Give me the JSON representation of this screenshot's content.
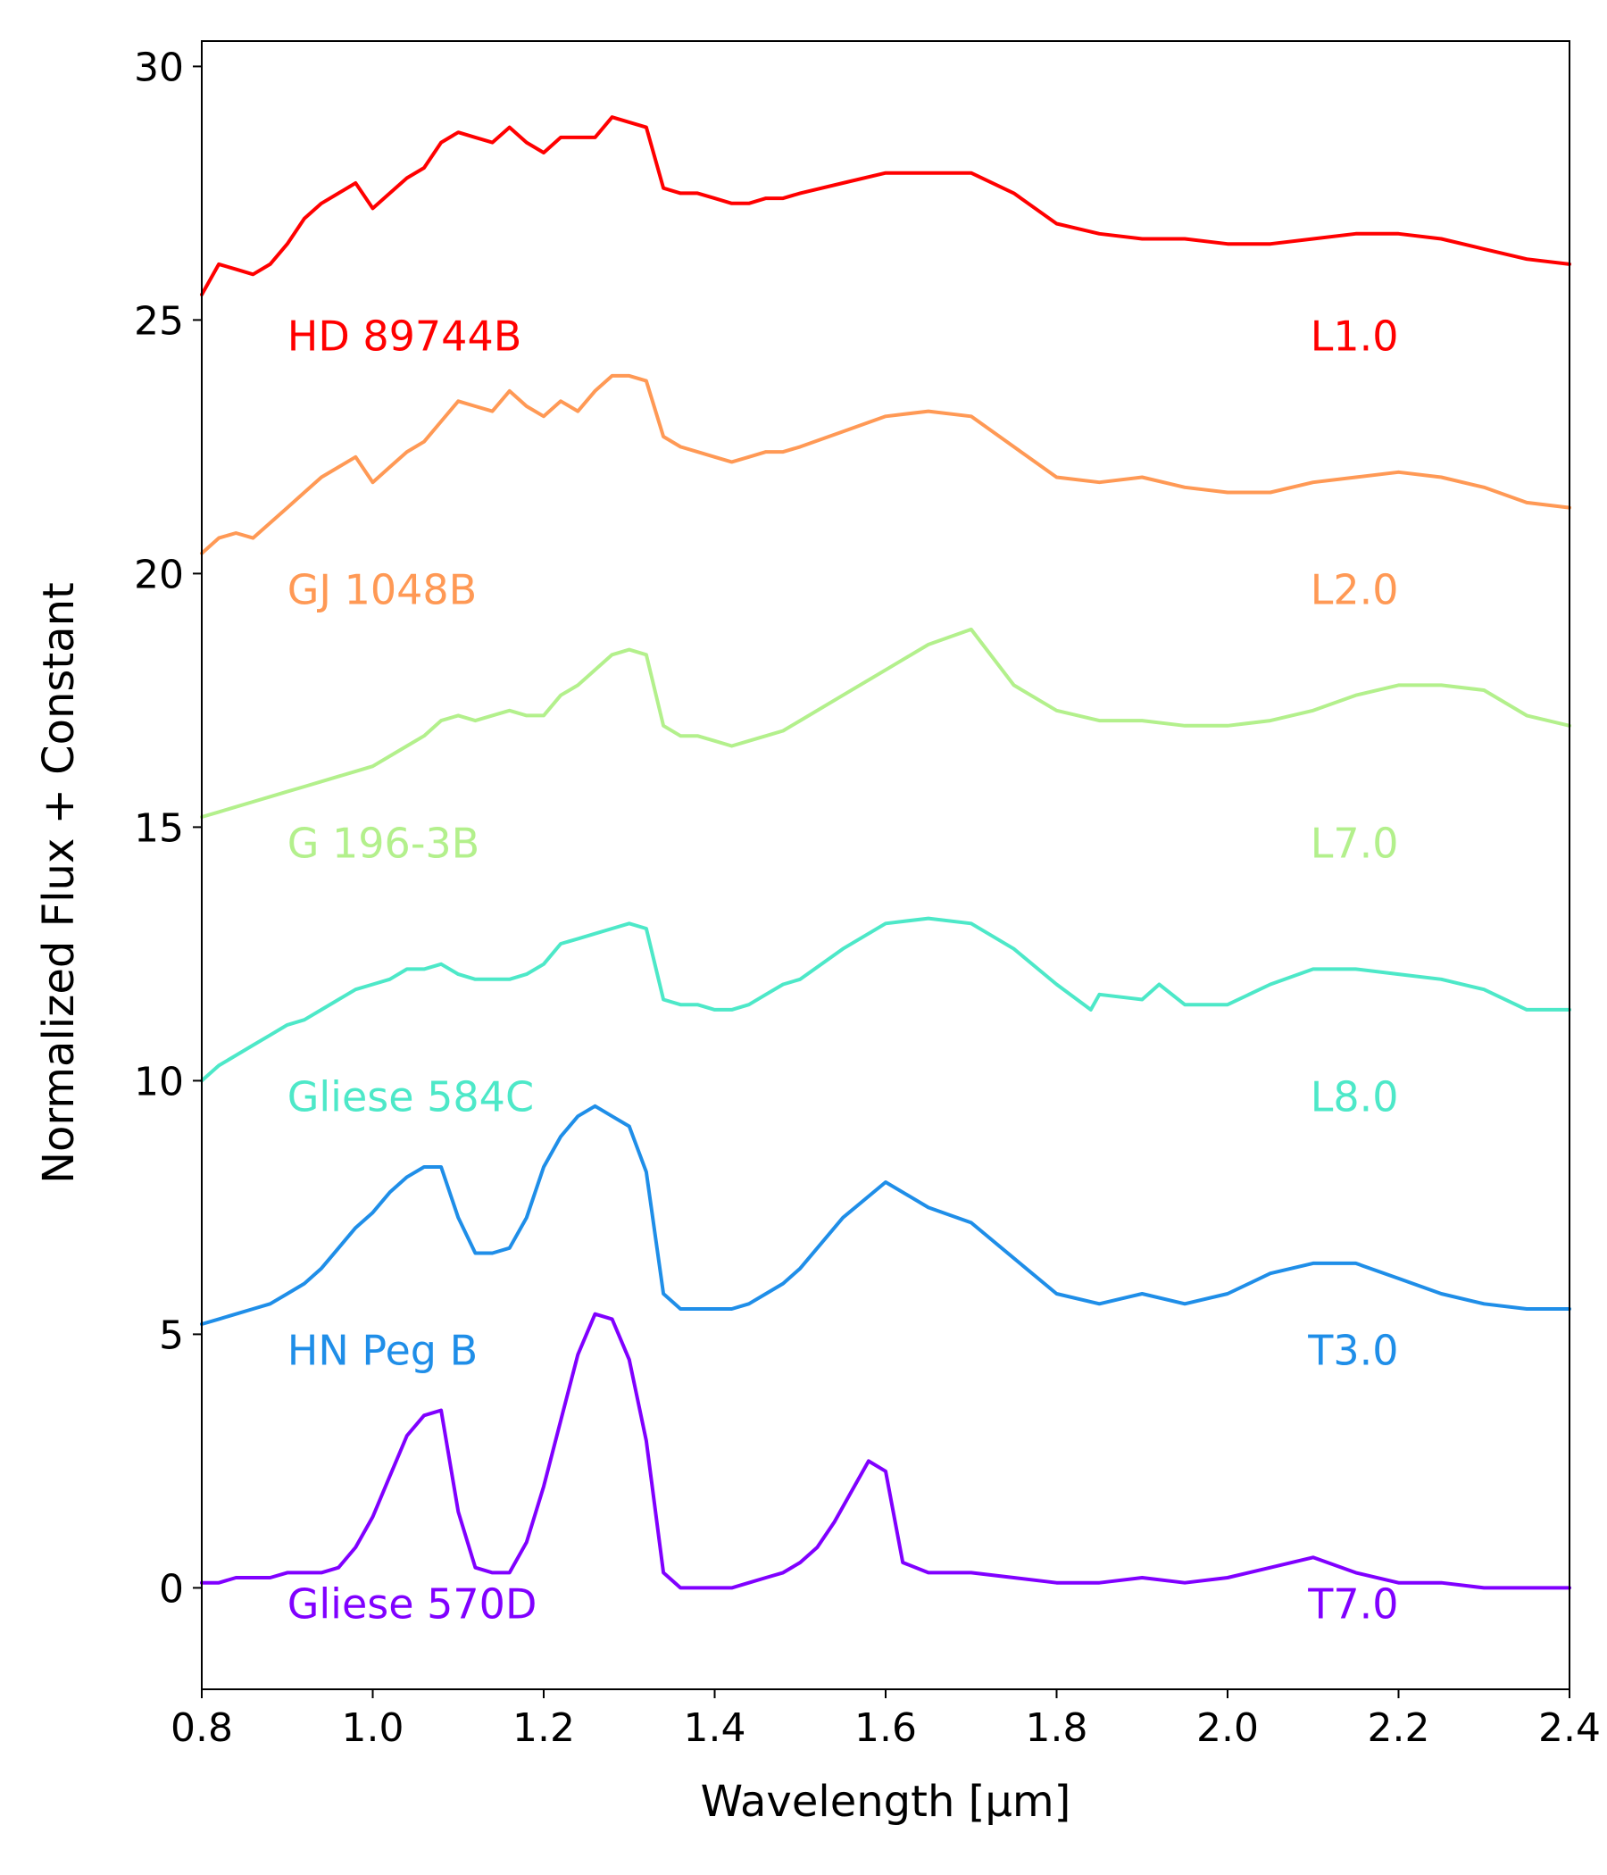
{
  "chart_data": {
    "type": "line",
    "title": "",
    "xlabel": "Wavelength [μm]",
    "ylabel": "Normalized Flux + Constant",
    "xlim": [
      0.8,
      2.4
    ],
    "ylim": [
      -2,
      30.5
    ],
    "xticks": [
      0.8,
      1.0,
      1.2,
      1.4,
      1.6,
      1.8,
      2.0,
      2.2,
      2.4
    ],
    "xtick_labels": [
      "0.8",
      "1.0",
      "1.2",
      "1.4",
      "1.6",
      "1.8",
      "2.0",
      "2.2",
      "2.4"
    ],
    "yticks": [
      0,
      5,
      10,
      15,
      20,
      25,
      30
    ],
    "ytick_labels": [
      "0",
      "5",
      "10",
      "15",
      "20",
      "25",
      "30"
    ],
    "grid": false,
    "legend": "none",
    "series": [
      {
        "name": "HD 89744B",
        "spectral_type": "L1.0",
        "color": "#ff0000",
        "label_y": 24.4,
        "x": [
          0.8,
          0.82,
          0.84,
          0.86,
          0.88,
          0.9,
          0.92,
          0.94,
          0.96,
          0.98,
          1.0,
          1.02,
          1.04,
          1.06,
          1.08,
          1.1,
          1.12,
          1.14,
          1.16,
          1.18,
          1.2,
          1.22,
          1.24,
          1.26,
          1.28,
          1.3,
          1.32,
          1.34,
          1.36,
          1.38,
          1.4,
          1.42,
          1.44,
          1.46,
          1.48,
          1.5,
          1.55,
          1.6,
          1.65,
          1.7,
          1.75,
          1.8,
          1.85,
          1.9,
          1.95,
          2.0,
          2.05,
          2.1,
          2.15,
          2.2,
          2.25,
          2.3,
          2.35,
          2.4
        ],
        "y": [
          25.5,
          26.1,
          26.0,
          25.9,
          26.1,
          26.5,
          27.0,
          27.3,
          27.5,
          27.7,
          27.2,
          27.5,
          27.8,
          28.0,
          28.5,
          28.7,
          28.6,
          28.5,
          28.8,
          28.5,
          28.3,
          28.6,
          28.6,
          28.6,
          29.0,
          28.9,
          28.8,
          27.6,
          27.5,
          27.5,
          27.4,
          27.3,
          27.3,
          27.4,
          27.4,
          27.5,
          27.7,
          27.9,
          27.9,
          27.9,
          27.5,
          26.9,
          26.7,
          26.6,
          26.6,
          26.5,
          26.5,
          26.6,
          26.7,
          26.7,
          26.6,
          26.4,
          26.2,
          26.1
        ]
      },
      {
        "name": "GJ 1048B",
        "spectral_type": "L2.0",
        "color": "#ff9955",
        "label_y": 19.4,
        "x": [
          0.8,
          0.82,
          0.84,
          0.86,
          0.88,
          0.9,
          0.92,
          0.94,
          0.96,
          0.98,
          1.0,
          1.02,
          1.04,
          1.06,
          1.08,
          1.1,
          1.12,
          1.14,
          1.16,
          1.18,
          1.2,
          1.22,
          1.24,
          1.26,
          1.28,
          1.3,
          1.32,
          1.34,
          1.36,
          1.38,
          1.4,
          1.42,
          1.44,
          1.46,
          1.48,
          1.5,
          1.55,
          1.6,
          1.65,
          1.7,
          1.75,
          1.8,
          1.85,
          1.9,
          1.95,
          2.0,
          2.05,
          2.1,
          2.15,
          2.2,
          2.25,
          2.3,
          2.35,
          2.4
        ],
        "y": [
          20.4,
          20.7,
          20.8,
          20.7,
          21.0,
          21.3,
          21.6,
          21.9,
          22.1,
          22.3,
          21.8,
          22.1,
          22.4,
          22.6,
          23.0,
          23.4,
          23.3,
          23.2,
          23.6,
          23.3,
          23.1,
          23.4,
          23.2,
          23.6,
          23.9,
          23.9,
          23.8,
          22.7,
          22.5,
          22.4,
          22.3,
          22.2,
          22.3,
          22.4,
          22.4,
          22.5,
          22.8,
          23.1,
          23.2,
          23.1,
          22.5,
          21.9,
          21.8,
          21.9,
          21.7,
          21.6,
          21.6,
          21.8,
          21.9,
          22.0,
          21.9,
          21.7,
          21.4,
          21.3
        ]
      },
      {
        "name": "G 196-3B",
        "spectral_type": "L7.0",
        "color": "#b3f08c",
        "label_y": 14.4,
        "x": [
          0.8,
          0.82,
          0.84,
          0.86,
          0.88,
          0.9,
          0.92,
          0.94,
          0.96,
          0.98,
          1.0,
          1.02,
          1.04,
          1.06,
          1.08,
          1.1,
          1.12,
          1.14,
          1.16,
          1.18,
          1.2,
          1.22,
          1.24,
          1.26,
          1.28,
          1.3,
          1.32,
          1.34,
          1.36,
          1.38,
          1.4,
          1.42,
          1.44,
          1.46,
          1.48,
          1.5,
          1.55,
          1.6,
          1.65,
          1.7,
          1.75,
          1.8,
          1.85,
          1.9,
          1.95,
          2.0,
          2.05,
          2.1,
          2.15,
          2.2,
          2.25,
          2.3,
          2.35,
          2.4
        ],
        "y": [
          15.2,
          15.3,
          15.4,
          15.5,
          15.6,
          15.7,
          15.8,
          15.9,
          16.0,
          16.1,
          16.2,
          16.4,
          16.6,
          16.8,
          17.1,
          17.2,
          17.1,
          17.2,
          17.3,
          17.2,
          17.2,
          17.6,
          17.8,
          18.1,
          18.4,
          18.5,
          18.4,
          17.0,
          16.8,
          16.8,
          16.7,
          16.6,
          16.7,
          16.8,
          16.9,
          17.1,
          17.6,
          18.1,
          18.6,
          18.9,
          17.8,
          17.3,
          17.1,
          17.1,
          17.0,
          17.0,
          17.1,
          17.3,
          17.6,
          17.8,
          17.8,
          17.7,
          17.2,
          17.0
        ]
      },
      {
        "name": "Gliese 584C",
        "spectral_type": "L8.0",
        "color": "#4de8c8",
        "label_y": 9.4,
        "x": [
          0.8,
          0.82,
          0.84,
          0.86,
          0.88,
          0.9,
          0.92,
          0.94,
          0.96,
          0.98,
          1.0,
          1.02,
          1.04,
          1.06,
          1.08,
          1.1,
          1.12,
          1.14,
          1.16,
          1.18,
          1.2,
          1.22,
          1.24,
          1.26,
          1.28,
          1.3,
          1.32,
          1.34,
          1.36,
          1.38,
          1.4,
          1.42,
          1.44,
          1.46,
          1.48,
          1.5,
          1.55,
          1.6,
          1.65,
          1.7,
          1.75,
          1.8,
          1.84,
          1.85,
          1.9,
          1.92,
          1.95,
          2.0,
          2.05,
          2.1,
          2.15,
          2.2,
          2.25,
          2.3,
          2.35,
          2.4
        ],
        "y": [
          10.0,
          10.3,
          10.5,
          10.7,
          10.9,
          11.1,
          11.2,
          11.4,
          11.6,
          11.8,
          11.9,
          12.0,
          12.2,
          12.2,
          12.3,
          12.1,
          12.0,
          12.0,
          12.0,
          12.1,
          12.3,
          12.7,
          12.8,
          12.9,
          13.0,
          13.1,
          13.0,
          11.6,
          11.5,
          11.5,
          11.4,
          11.4,
          11.5,
          11.7,
          11.9,
          12.0,
          12.6,
          13.1,
          13.2,
          13.1,
          12.6,
          11.9,
          11.4,
          11.7,
          11.6,
          11.9,
          11.5,
          11.5,
          11.9,
          12.2,
          12.2,
          12.1,
          12.0,
          11.8,
          11.4,
          11.4
        ]
      },
      {
        "name": "HN Peg B",
        "spectral_type": "T3.0",
        "color": "#1f8ee8",
        "label_y": 4.4,
        "x": [
          0.8,
          0.82,
          0.84,
          0.86,
          0.88,
          0.9,
          0.92,
          0.94,
          0.96,
          0.98,
          1.0,
          1.02,
          1.04,
          1.06,
          1.08,
          1.1,
          1.12,
          1.14,
          1.16,
          1.18,
          1.2,
          1.22,
          1.24,
          1.26,
          1.28,
          1.3,
          1.32,
          1.34,
          1.36,
          1.38,
          1.4,
          1.42,
          1.44,
          1.46,
          1.48,
          1.5,
          1.55,
          1.6,
          1.65,
          1.7,
          1.75,
          1.8,
          1.85,
          1.9,
          1.95,
          2.0,
          2.05,
          2.1,
          2.15,
          2.2,
          2.25,
          2.3,
          2.35,
          2.4
        ],
        "y": [
          5.2,
          5.3,
          5.4,
          5.5,
          5.6,
          5.8,
          6.0,
          6.3,
          6.7,
          7.1,
          7.4,
          7.8,
          8.1,
          8.3,
          8.3,
          7.3,
          6.6,
          6.6,
          6.7,
          7.3,
          8.3,
          8.9,
          9.3,
          9.5,
          9.3,
          9.1,
          8.2,
          5.8,
          5.5,
          5.5,
          5.5,
          5.5,
          5.6,
          5.8,
          6.0,
          6.3,
          7.3,
          8.0,
          7.5,
          7.2,
          6.5,
          5.8,
          5.6,
          5.8,
          5.6,
          5.8,
          6.2,
          6.4,
          6.4,
          6.1,
          5.8,
          5.6,
          5.5,
          5.5
        ]
      },
      {
        "name": "Gliese 570D",
        "spectral_type": "T7.0",
        "color": "#8000ff",
        "label_y": -0.6,
        "x": [
          0.8,
          0.82,
          0.84,
          0.86,
          0.88,
          0.9,
          0.92,
          0.94,
          0.96,
          0.98,
          1.0,
          1.02,
          1.04,
          1.06,
          1.08,
          1.1,
          1.12,
          1.14,
          1.16,
          1.18,
          1.2,
          1.22,
          1.24,
          1.26,
          1.28,
          1.3,
          1.32,
          1.34,
          1.36,
          1.38,
          1.4,
          1.42,
          1.44,
          1.46,
          1.48,
          1.5,
          1.52,
          1.54,
          1.56,
          1.58,
          1.6,
          1.62,
          1.65,
          1.7,
          1.75,
          1.8,
          1.85,
          1.9,
          1.95,
          2.0,
          2.05,
          2.1,
          2.15,
          2.2,
          2.25,
          2.3,
          2.35,
          2.4
        ],
        "y": [
          0.1,
          0.1,
          0.2,
          0.2,
          0.2,
          0.3,
          0.3,
          0.3,
          0.4,
          0.8,
          1.4,
          2.2,
          3.0,
          3.4,
          3.5,
          1.5,
          0.4,
          0.3,
          0.3,
          0.9,
          2.0,
          3.3,
          4.6,
          5.4,
          5.3,
          4.5,
          2.9,
          0.3,
          0.0,
          0.0,
          0.0,
          0.0,
          0.1,
          0.2,
          0.3,
          0.5,
          0.8,
          1.3,
          1.9,
          2.5,
          2.3,
          0.5,
          0.3,
          0.3,
          0.2,
          0.1,
          0.1,
          0.2,
          0.1,
          0.2,
          0.4,
          0.6,
          0.3,
          0.1,
          0.1,
          0.0,
          0.0,
          0.0
        ]
      }
    ]
  }
}
